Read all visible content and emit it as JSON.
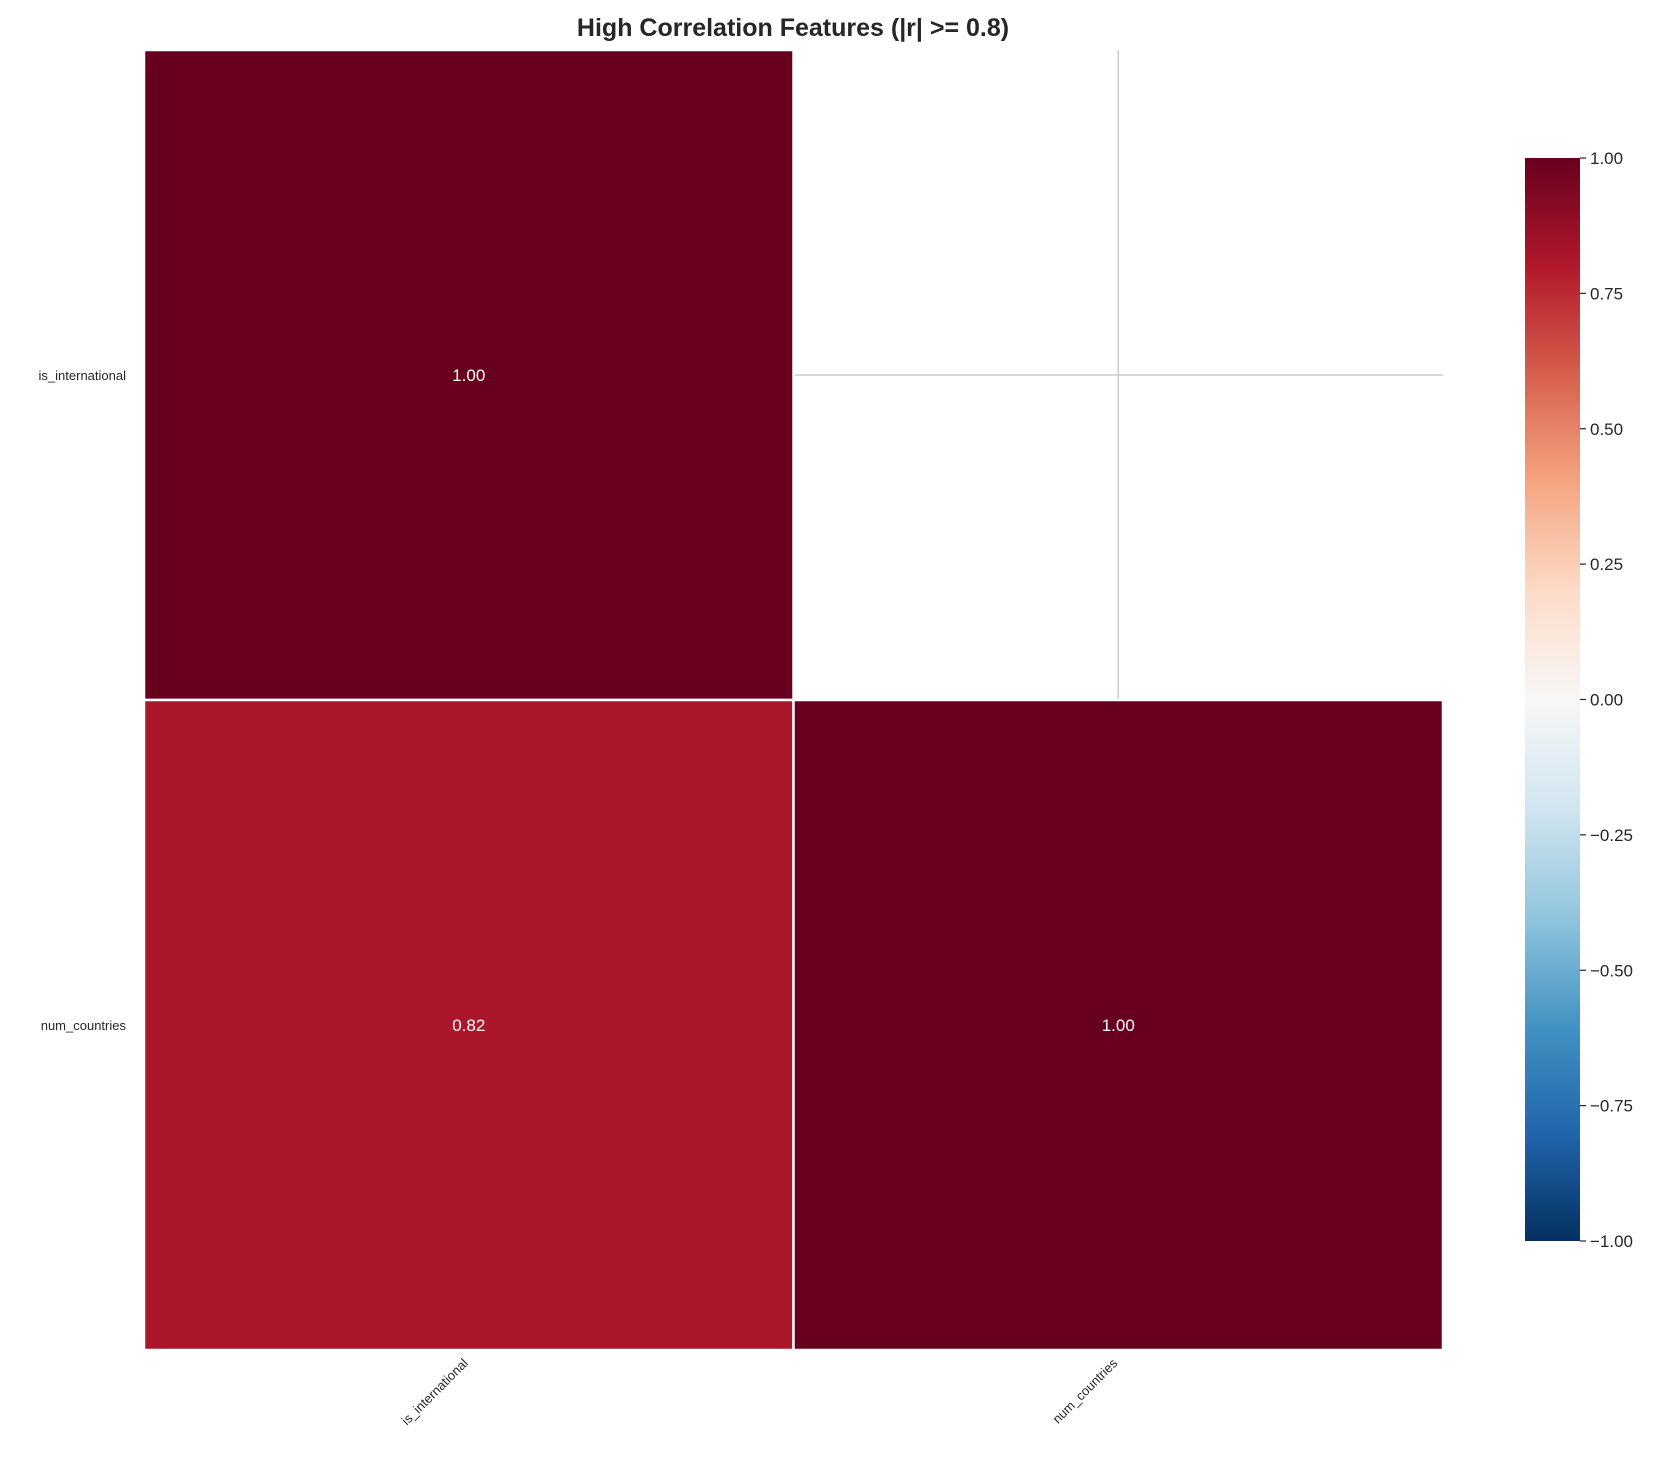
{
  "chart_data": {
    "type": "heatmap",
    "title": "High Correlation Features (|r| >= 0.8)",
    "x_labels": [
      "is_international",
      "num_countries"
    ],
    "y_labels": [
      "is_international",
      "num_countries"
    ],
    "values": [
      [
        1.0,
        null
      ],
      [
        0.82,
        1.0
      ]
    ],
    "annotations": [
      [
        "1.00",
        ""
      ],
      [
        "0.82",
        "1.00"
      ]
    ],
    "mask": "upper triangle",
    "colormap": "RdBu_r",
    "vmin": -1,
    "vmax": 1,
    "colorbar": {
      "ticks": [
        1.0,
        0.75,
        0.5,
        0.25,
        0.0,
        -0.25,
        -0.5,
        -0.75,
        -1.0
      ],
      "tick_labels": [
        "1.00",
        "0.75",
        "0.50",
        "0.25",
        "0.00",
        "−0.25",
        "−0.50",
        "−0.75",
        "−1.00"
      ],
      "placement": "right"
    },
    "grid": true
  }
}
